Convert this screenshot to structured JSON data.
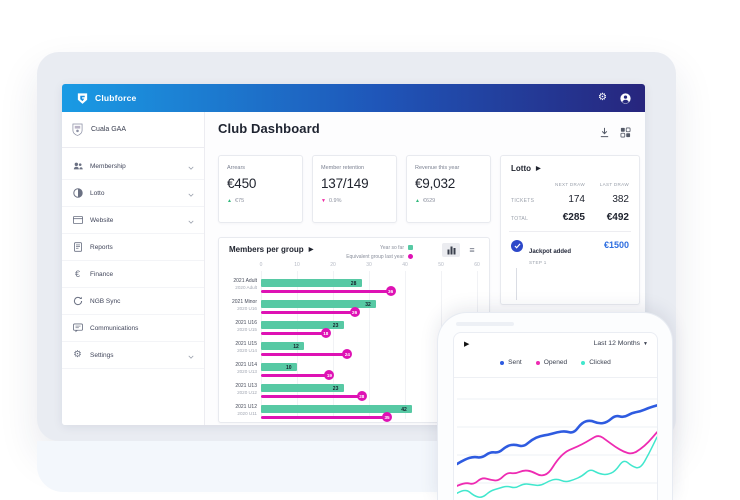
{
  "navbar": {
    "brand": "Clubforce",
    "icons": [
      "gear-icon",
      "user-icon"
    ]
  },
  "sidebar": {
    "club_name": "Cuala GAA",
    "items": [
      {
        "label": "Membership",
        "icon": "users",
        "chevron": true
      },
      {
        "label": "Lotto",
        "icon": "lotto",
        "chevron": true
      },
      {
        "label": "Website",
        "icon": "browser",
        "chevron": true
      },
      {
        "label": "Reports",
        "icon": "report",
        "chevron": false
      },
      {
        "label": "Finance",
        "icon": "euro",
        "chevron": false
      },
      {
        "label": "NGB Sync",
        "icon": "sync",
        "chevron": false
      },
      {
        "label": "Communications",
        "icon": "chat",
        "chevron": false
      },
      {
        "label": "Settings",
        "icon": "gear",
        "chevron": true
      }
    ]
  },
  "header": {
    "title": "Club Dashboard",
    "icons": [
      "download-icon",
      "grid-icon"
    ]
  },
  "stats": [
    {
      "label": "Arrears",
      "value": "€450",
      "delta": "€75",
      "direction": "up",
      "delta_color": "#34b97d"
    },
    {
      "label": "Member retention",
      "value": "137/149",
      "delta": "0.9%",
      "direction": "down",
      "delta_color": "#ef2aa4"
    },
    {
      "label": "Revenue this year",
      "value": "€9,032",
      "delta": "€629",
      "direction": "up",
      "delta_color": "#34b97d"
    }
  ],
  "lotto_panel": {
    "title": "Lotto",
    "columns": [
      "NEXT DRAW",
      "LAST DRAW"
    ],
    "rows": [
      {
        "label": "TICKETS",
        "next": "174",
        "last": "382",
        "bold": false
      },
      {
        "label": "TOTAL",
        "next": "€285",
        "last": "€492",
        "bold": true
      }
    ],
    "event": {
      "title": "Jackpot added",
      "step": "STEP 1",
      "amount": "€1500",
      "amount_color": "#2e6ee0"
    }
  },
  "phone": {
    "range_label": "Last 12 Months"
  },
  "chart_data": [
    {
      "type": "bar",
      "title": "Members per group",
      "orientation": "horizontal",
      "legend": [
        {
          "label": "Year so far",
          "color": "#57c9a4",
          "shape": "square"
        },
        {
          "label": "Equivalent group last year",
          "color": "#de12b4",
          "shape": "circle"
        }
      ],
      "x_ticks": [
        0,
        10,
        20,
        30,
        40,
        50,
        60
      ],
      "xlim": [
        0,
        60
      ],
      "grid": true,
      "rows": [
        {
          "label": "2021 Adult",
          "sub_label": "2020 Adult",
          "year_so_far": 28,
          "last_year_equiv": 36
        },
        {
          "label": "2021 Minor",
          "sub_label": "2020 U16",
          "year_so_far": 32,
          "last_year_equiv": 26
        },
        {
          "label": "2021 U16",
          "sub_label": "2020 U15",
          "year_so_far": 23,
          "last_year_equiv": 18
        },
        {
          "label": "2021 U15",
          "sub_label": "2020 U14",
          "year_so_far": 12,
          "last_year_equiv": 24
        },
        {
          "label": "2021 U14",
          "sub_label": "2020 U13",
          "year_so_far": 10,
          "last_year_equiv": 19
        },
        {
          "label": "2021 U13",
          "sub_label": "2020 U12",
          "year_so_far": 23,
          "last_year_equiv": 28
        },
        {
          "label": "2021 U12",
          "sub_label": "2020 U11",
          "year_so_far": 42,
          "last_year_equiv": 35
        }
      ],
      "bar_color": "#57c9a4",
      "lollipop_color": "#de12b4"
    },
    {
      "type": "line",
      "title": "Last 12 Months",
      "grid": true,
      "legend_position": "top",
      "ylim": [
        0,
        100
      ],
      "series": [
        {
          "name": "Sent",
          "color": "#2e5be0",
          "values": [
            32,
            36,
            38,
            37,
            42,
            41,
            47,
            48,
            46,
            52,
            55,
            56,
            58,
            59,
            57,
            66,
            68,
            65,
            66,
            72,
            70,
            74,
            75,
            78,
            80
          ]
        },
        {
          "name": "Opened",
          "color": "#ee2bb2",
          "values": [
            14,
            17,
            15,
            21,
            19,
            18,
            25,
            24,
            27,
            26,
            22,
            24,
            35,
            42,
            45,
            48,
            52,
            56,
            51,
            46,
            42,
            40,
            44,
            50,
            58
          ]
        },
        {
          "name": "Clicked",
          "color": "#41e7cd",
          "values": [
            8,
            12,
            6,
            4,
            10,
            12,
            14,
            12,
            16,
            15,
            14,
            18,
            20,
            17,
            19,
            22,
            28,
            24,
            23,
            26,
            36,
            30,
            28,
            40,
            54
          ]
        }
      ]
    }
  ],
  "colors": {
    "navbar_gradient_left": "#1a9be4",
    "navbar_gradient_right": "#27257d",
    "accent_blue": "#2e6ee0",
    "teal": "#57c9a4",
    "magenta": "#de12b4",
    "green_up": "#34b97d",
    "pink_down": "#ef2aa4"
  }
}
